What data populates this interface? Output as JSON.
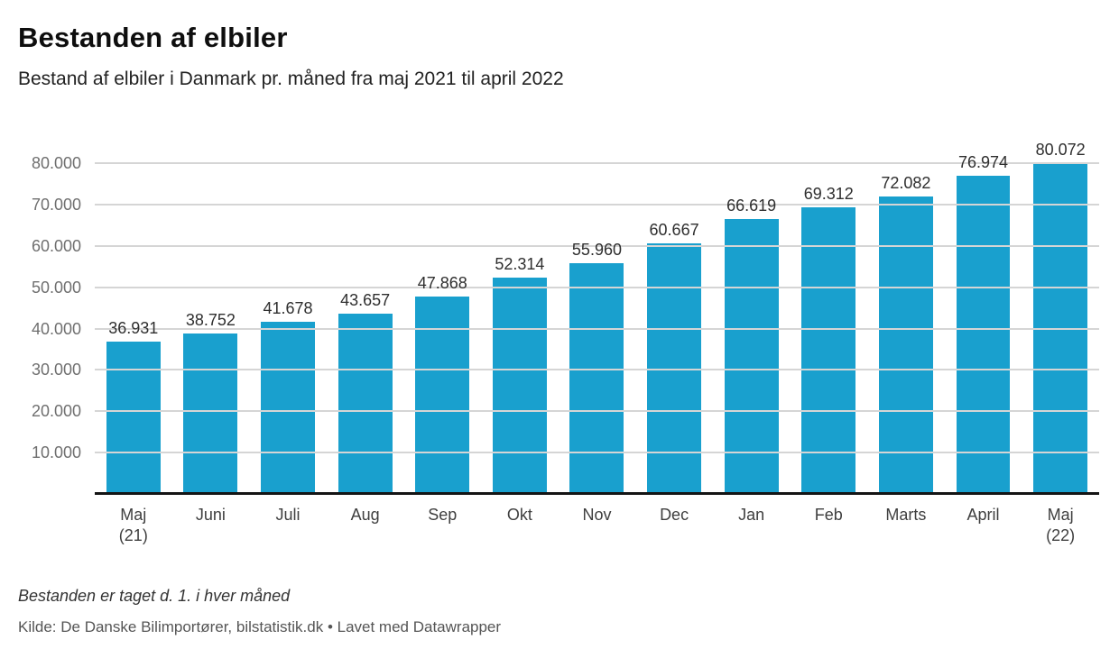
{
  "header": {
    "title": "Bestanden af elbiler",
    "subtitle": "Bestand af elbiler i Danmark pr. måned fra maj 2021 til april 2022"
  },
  "chart_data": {
    "type": "bar",
    "title": "Bestanden af elbiler",
    "subtitle": "Bestand af elbiler i Danmark pr. måned fra maj 2021 til april 2022",
    "categories": [
      "Maj\n(21)",
      "Juni",
      "Juli",
      "Aug",
      "Sep",
      "Okt",
      "Nov",
      "Dec",
      "Jan",
      "Feb",
      "Marts",
      "April",
      "Maj\n(22)"
    ],
    "values": [
      36931,
      38752,
      41678,
      43657,
      47868,
      52314,
      55960,
      60667,
      66619,
      69312,
      72082,
      76974,
      80072
    ],
    "value_labels": [
      "36.931",
      "38.752",
      "41.678",
      "43.657",
      "47.868",
      "52.314",
      "55.960",
      "60.667",
      "66.619",
      "69.312",
      "72.082",
      "76.974",
      "80.072"
    ],
    "y_ticks": [
      10000,
      20000,
      30000,
      40000,
      50000,
      60000,
      70000,
      80000
    ],
    "y_tick_labels": [
      "10.000",
      "20.000",
      "30.000",
      "40.000",
      "50.000",
      "60.000",
      "70.000",
      "80.000"
    ],
    "ylim": [
      0,
      87300
    ],
    "grid": true,
    "legend": "none",
    "xlabel": "",
    "ylabel": "",
    "colors": {
      "bar": "#19a0ce",
      "gridline": "#d5d5d5",
      "axis_baseline": "#141414"
    }
  },
  "footer": {
    "note": "Bestanden er taget d. 1. i hver måned",
    "source": "Kilde: De Danske Bilimportører, bilstatistik.dk • Lavet med Datawrapper"
  }
}
